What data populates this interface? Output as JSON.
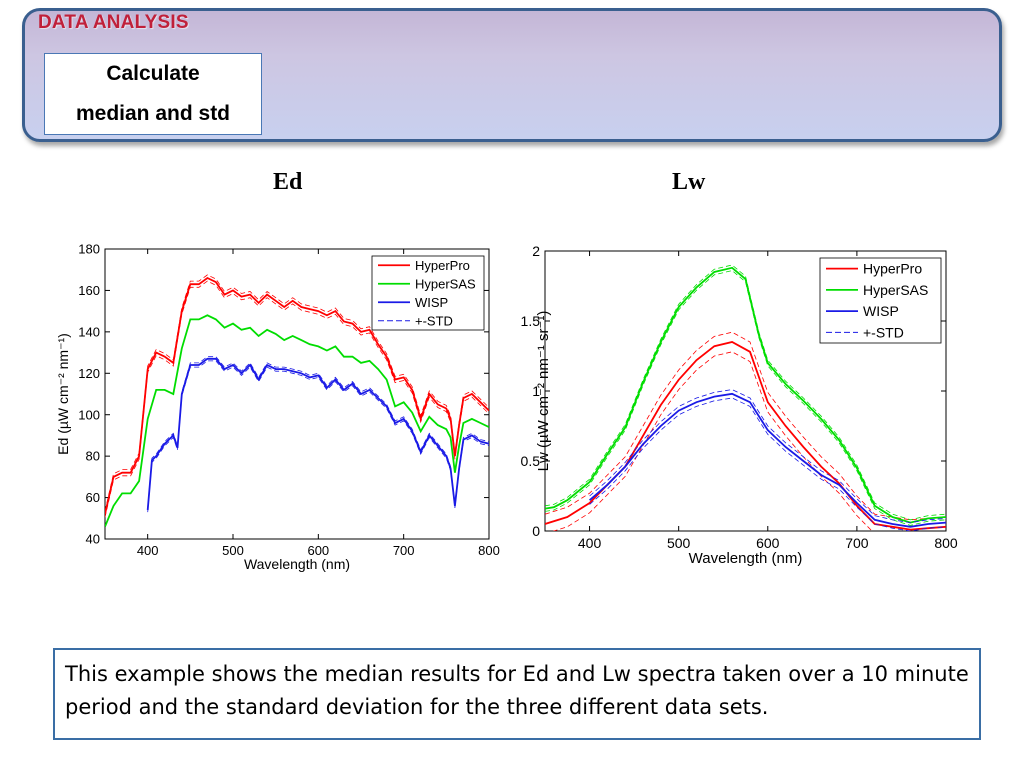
{
  "header": {
    "title": "DATA ANALYSIS",
    "step_line1": "Calculate",
    "step_line2": "median and std"
  },
  "panels": {
    "left_label": "Ed",
    "right_label": "Lw"
  },
  "caption": "This example shows the median results for Ed and Lw spectra taken over a 10 minute period and the standard deviation for the three different data sets.",
  "chart_data": [
    {
      "type": "line",
      "title": "",
      "xlabel": "Wavelength (nm)",
      "ylabel": "Ed (µW cm⁻² nm⁻¹)",
      "xlim": [
        350,
        800
      ],
      "ylim": [
        40,
        180
      ],
      "xticks": [
        400,
        500,
        600,
        700,
        800
      ],
      "yticks": [
        40,
        60,
        80,
        100,
        120,
        140,
        160,
        180
      ],
      "grid": false,
      "legend_position": "top-right",
      "legend": [
        "HyperPro",
        "HyperSAS",
        "WISP",
        "+-STD"
      ],
      "series": [
        {
          "name": "HyperPro",
          "color": "#ff0000",
          "std": 1.5,
          "x": [
            350,
            360,
            370,
            380,
            390,
            400,
            410,
            420,
            430,
            440,
            450,
            460,
            470,
            480,
            490,
            500,
            510,
            520,
            530,
            540,
            550,
            560,
            570,
            580,
            590,
            600,
            610,
            620,
            630,
            640,
            650,
            660,
            670,
            680,
            690,
            700,
            710,
            720,
            730,
            740,
            750,
            755,
            760,
            765,
            770,
            780,
            790,
            800
          ],
          "y": [
            52,
            70,
            72,
            72,
            80,
            122,
            130,
            128,
            125,
            150,
            163,
            163,
            166,
            164,
            158,
            160,
            157,
            158,
            154,
            158,
            155,
            152,
            155,
            152,
            151,
            150,
            148,
            150,
            145,
            144,
            140,
            141,
            134,
            128,
            117,
            118,
            112,
            98,
            110,
            105,
            103,
            98,
            80,
            95,
            108,
            110,
            106,
            102
          ]
        },
        {
          "name": "HyperSAS",
          "color": "#00dd00",
          "std": 0,
          "x": [
            350,
            360,
            370,
            380,
            390,
            400,
            410,
            420,
            430,
            440,
            450,
            460,
            470,
            480,
            490,
            500,
            510,
            520,
            530,
            540,
            550,
            560,
            570,
            580,
            590,
            600,
            610,
            620,
            630,
            640,
            650,
            660,
            670,
            680,
            690,
            700,
            710,
            720,
            730,
            740,
            750,
            755,
            760,
            765,
            770,
            780,
            790,
            800
          ],
          "y": [
            46,
            56,
            62,
            62,
            68,
            98,
            112,
            112,
            110,
            132,
            146,
            146,
            148,
            146,
            142,
            144,
            141,
            142,
            138,
            141,
            139,
            136,
            138,
            136,
            134,
            133,
            131,
            133,
            128,
            128,
            125,
            126,
            122,
            117,
            104,
            106,
            101,
            92,
            99,
            95,
            93,
            89,
            72,
            85,
            96,
            98,
            96,
            94
          ]
        },
        {
          "name": "WISP",
          "color": "#1a1ae6",
          "std": 1,
          "x": [
            400,
            405,
            410,
            420,
            430,
            435,
            440,
            450,
            460,
            470,
            480,
            490,
            500,
            510,
            520,
            530,
            540,
            550,
            560,
            570,
            580,
            590,
            600,
            610,
            620,
            630,
            640,
            650,
            660,
            670,
            680,
            690,
            700,
            710,
            720,
            730,
            740,
            750,
            755,
            760,
            765,
            770,
            780,
            790,
            800
          ],
          "y": [
            54,
            78,
            80,
            86,
            90,
            84,
            110,
            124,
            124,
            127,
            127,
            122,
            124,
            120,
            124,
            117,
            124,
            122,
            122,
            121,
            120,
            118,
            119,
            113,
            117,
            112,
            115,
            110,
            112,
            108,
            104,
            96,
            98,
            92,
            82,
            90,
            85,
            80,
            74,
            56,
            74,
            88,
            90,
            87,
            86
          ]
        }
      ]
    },
    {
      "type": "line",
      "title": "",
      "xlabel": "Wavelength (nm)",
      "ylabel": "Lw (µW cm⁻² nm⁻¹ sr⁻¹)",
      "xlim": [
        350,
        800
      ],
      "ylim": [
        0,
        2
      ],
      "xticks": [
        400,
        500,
        600,
        700,
        800
      ],
      "yticks": [
        0,
        0.5,
        1,
        1.5,
        2
      ],
      "grid": false,
      "legend_position": "top-right",
      "legend": [
        "HyperPro",
        "HyperSAS",
        "WISP",
        "+-STD"
      ],
      "series": [
        {
          "name": "HyperPro",
          "color": "#ff0000",
          "std": 0.07,
          "x": [
            350,
            375,
            400,
            420,
            440,
            460,
            480,
            500,
            520,
            540,
            560,
            580,
            600,
            620,
            640,
            660,
            680,
            700,
            720,
            740,
            760,
            780,
            800
          ],
          "y": [
            0.05,
            0.1,
            0.2,
            0.33,
            0.46,
            0.68,
            0.9,
            1.08,
            1.22,
            1.32,
            1.35,
            1.28,
            0.92,
            0.75,
            0.6,
            0.46,
            0.34,
            0.18,
            0.05,
            0.03,
            0.01,
            0.02,
            0.03
          ]
        },
        {
          "name": "HyperSAS",
          "color": "#00dd00",
          "std": 0.02,
          "x": [
            350,
            360,
            375,
            400,
            420,
            440,
            460,
            480,
            500,
            520,
            540,
            560,
            575,
            590,
            600,
            620,
            640,
            660,
            680,
            700,
            720,
            740,
            760,
            780,
            800
          ],
          "y": [
            0.16,
            0.17,
            0.22,
            0.35,
            0.55,
            0.74,
            1.06,
            1.35,
            1.6,
            1.74,
            1.85,
            1.88,
            1.8,
            1.4,
            1.2,
            1.05,
            0.93,
            0.8,
            0.65,
            0.45,
            0.18,
            0.1,
            0.06,
            0.09,
            0.1
          ]
        },
        {
          "name": "WISP",
          "color": "#1a1ae6",
          "std": 0.03,
          "x": [
            400,
            420,
            440,
            460,
            480,
            500,
            520,
            540,
            560,
            580,
            600,
            620,
            640,
            660,
            680,
            700,
            720,
            740,
            760,
            780,
            800
          ],
          "y": [
            0.22,
            0.33,
            0.46,
            0.62,
            0.75,
            0.86,
            0.92,
            0.96,
            0.98,
            0.92,
            0.72,
            0.6,
            0.5,
            0.4,
            0.33,
            0.2,
            0.08,
            0.05,
            0.03,
            0.05,
            0.06
          ]
        }
      ]
    }
  ]
}
